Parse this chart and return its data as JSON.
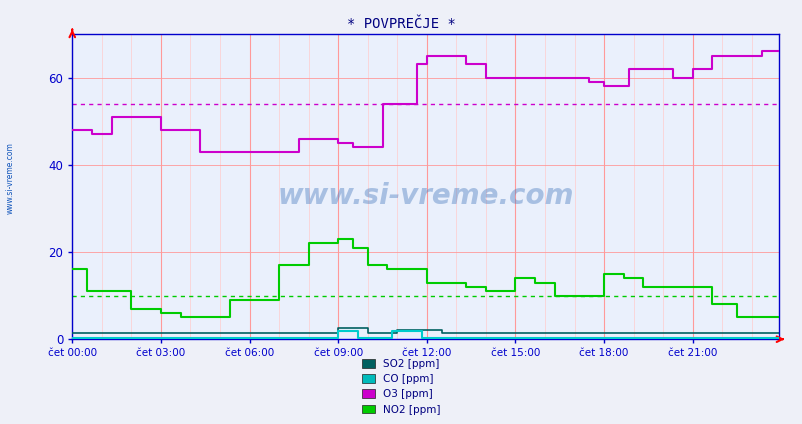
{
  "title": "* POVPREČJE *",
  "fig_bg": "#eef0f8",
  "plot_bg": "#eaf0fc",
  "ylim": [
    0,
    70
  ],
  "yticks": [
    0,
    20,
    40,
    60
  ],
  "num_points": 288,
  "hline_O3": 54,
  "hline_NO2": 10,
  "xtick_labels": [
    "čet 00:00",
    "čet 03:00",
    "čet 06:00",
    "čet 09:00",
    "čet 12:00",
    "čet 15:00",
    "čet 18:00",
    "čet 21:00"
  ],
  "xtick_positions": [
    0,
    36,
    72,
    108,
    144,
    180,
    216,
    252
  ],
  "colors": {
    "SO2": "#006060",
    "CO": "#00cccc",
    "O3": "#cc00cc",
    "NO2": "#00cc00"
  },
  "legend_colors": {
    "SO2": "#006060",
    "CO": "#00bbbb",
    "O3": "#cc00cc",
    "NO2": "#00cc00"
  },
  "legend_labels": {
    "SO2": "SO2 [ppm]",
    "CO": "CO [ppm]",
    "O3": "O3 [ppm]",
    "NO2": "NO2 [ppm]"
  },
  "watermark": "www.si-vreme.com",
  "sidebar": "www.si-vreme.com",
  "title_color": "#000080",
  "axis_color": "#0000cc",
  "tick_color": "#0000cc",
  "grid_major_color": "#ff9999",
  "grid_minor_color": "#ffcccc",
  "hline_color_O3": "#cc00cc",
  "hline_color_NO2": "#00cc00"
}
